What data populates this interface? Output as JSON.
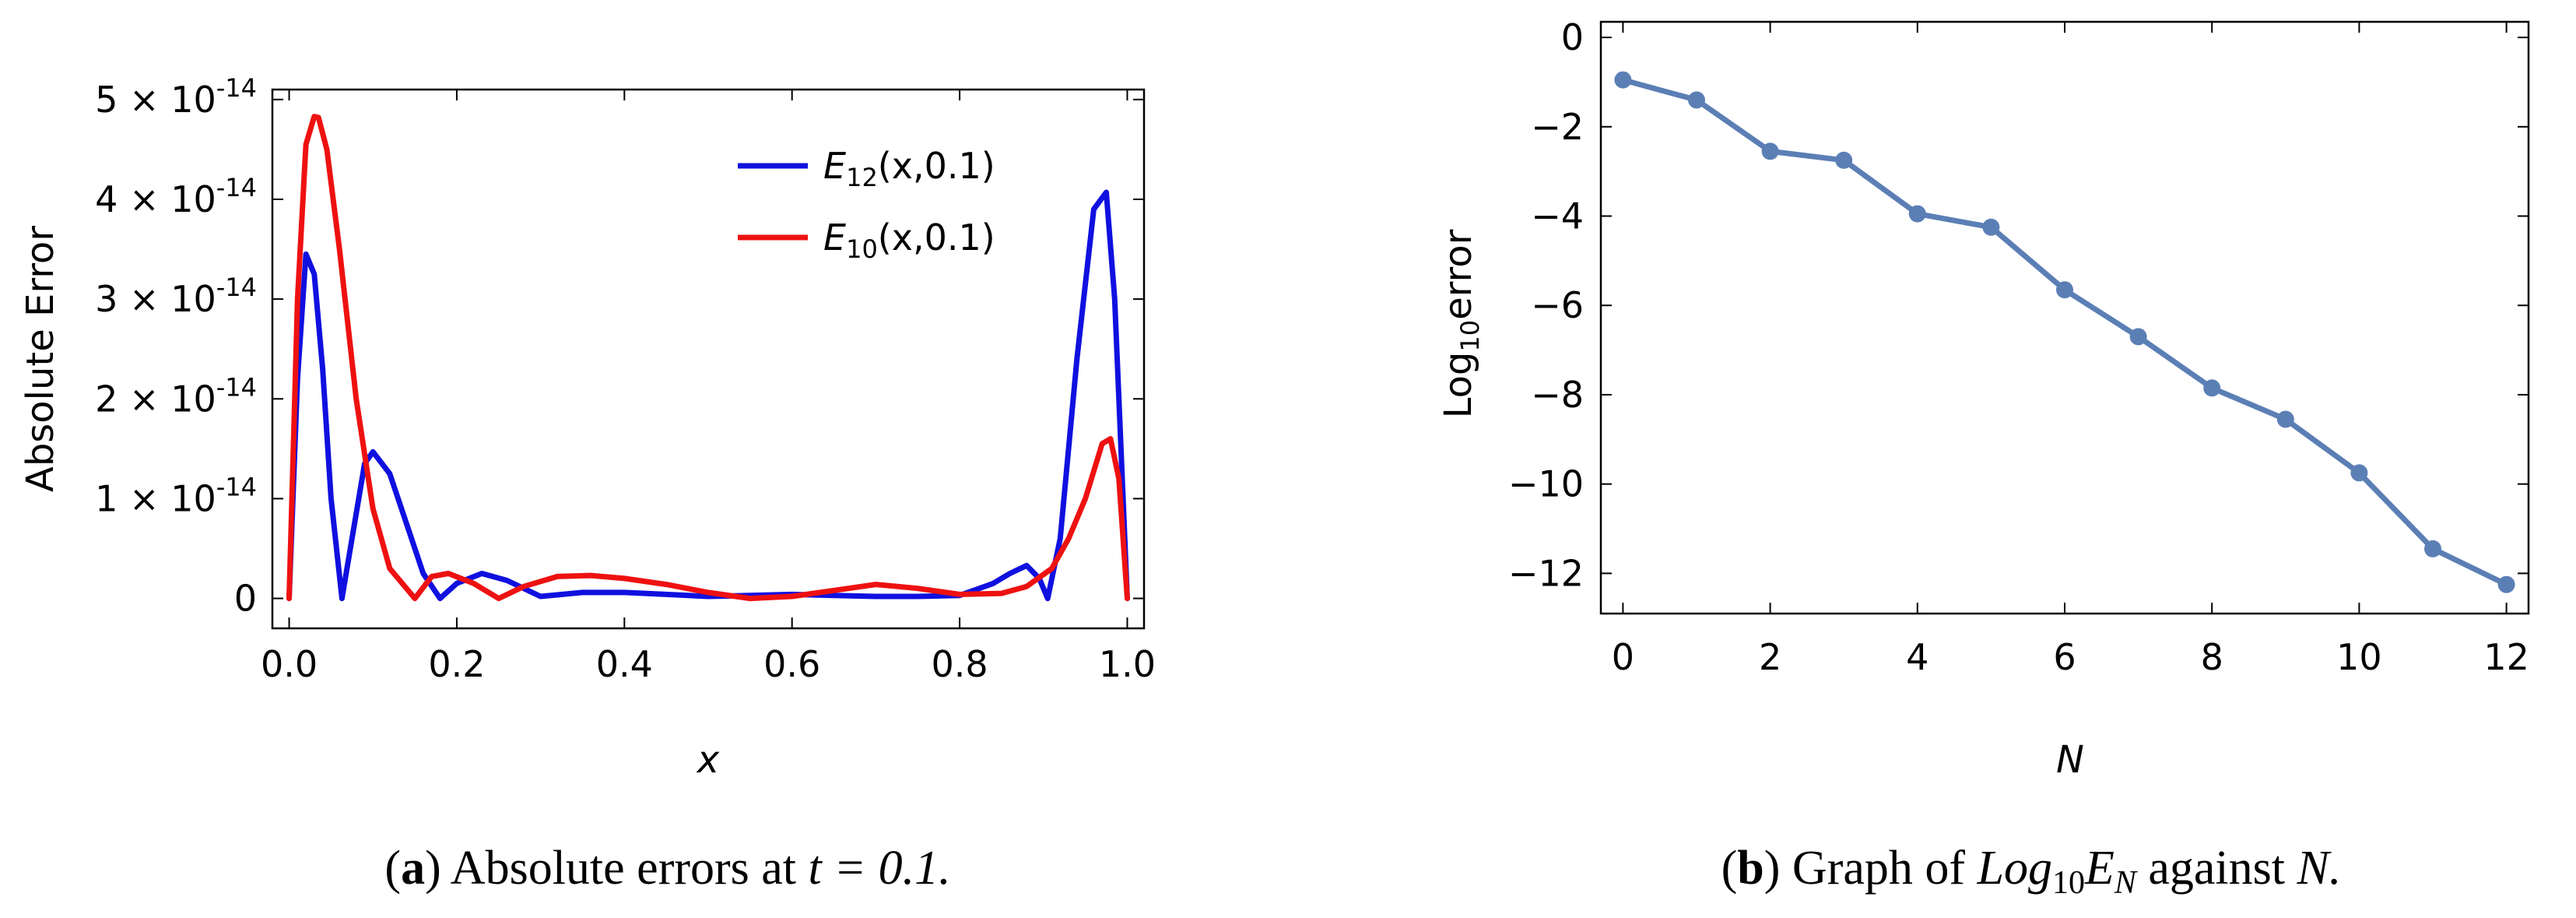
{
  "chart_data": [
    {
      "type": "line",
      "caption_label": "a",
      "caption_text": "Absolute errors at",
      "caption_math": "t = 0.1.",
      "xlabel": "x",
      "ylabel": "Absolute Error",
      "xlim": [
        -0.02,
        1.02
      ],
      "ylim": [
        -3e-15,
        5.1e-14
      ],
      "x_ticks": [
        "0.0",
        "0.2",
        "0.4",
        "0.6",
        "0.8",
        "1.0"
      ],
      "y_ticks": [
        "0",
        "1 × 10",
        "2 × 10",
        "3 × 10",
        "4 × 10",
        "5 × 10"
      ],
      "y_tick_exponent": "-14",
      "series": [
        {
          "name": "E12(x,0.1)",
          "legend_main": "E",
          "legend_sub": "12",
          "legend_args": "(x,0.1)",
          "color": "#1010e0",
          "x": [
            0.0,
            0.01,
            0.02,
            0.03,
            0.04,
            0.05,
            0.063,
            0.075,
            0.09,
            0.1,
            0.12,
            0.14,
            0.16,
            0.18,
            0.2,
            0.23,
            0.26,
            0.3,
            0.35,
            0.4,
            0.45,
            0.5,
            0.55,
            0.6,
            0.65,
            0.7,
            0.75,
            0.8,
            0.84,
            0.86,
            0.88,
            0.895,
            0.905,
            0.92,
            0.94,
            0.96,
            0.975,
            0.985,
            0.995,
            1.0
          ],
          "y": [
            0.0,
            2.2e-14,
            3.45e-14,
            3.25e-14,
            2.3e-14,
            1e-14,
            0.0,
            6e-15,
            1.35e-14,
            1.47e-14,
            1.25e-14,
            7.5e-15,
            2.5e-15,
            0.0,
            1.5e-15,
            2.5e-15,
            1.8e-15,
            2e-16,
            6e-16,
            6e-16,
            4e-16,
            2e-16,
            3e-16,
            4e-16,
            3e-16,
            2e-16,
            2e-16,
            3e-16,
            1.5e-15,
            2.5e-15,
            3.3e-15,
            2e-15,
            0.0,
            6e-15,
            2.4e-14,
            3.9e-14,
            4.07e-14,
            3e-14,
            1e-14,
            0.0
          ]
        },
        {
          "name": "E10(x,0.1)",
          "legend_main": "E",
          "legend_sub": "10",
          "legend_args": "(x,0.1)",
          "color": "#ee1111",
          "x": [
            0.0,
            0.01,
            0.02,
            0.03,
            0.035,
            0.045,
            0.06,
            0.08,
            0.1,
            0.12,
            0.15,
            0.17,
            0.19,
            0.22,
            0.25,
            0.28,
            0.32,
            0.36,
            0.4,
            0.45,
            0.5,
            0.55,
            0.6,
            0.65,
            0.7,
            0.75,
            0.8,
            0.85,
            0.88,
            0.91,
            0.93,
            0.95,
            0.97,
            0.98,
            0.99,
            1.0
          ],
          "y": [
            0.0,
            3e-14,
            4.55e-14,
            4.83e-14,
            4.82e-14,
            4.5e-14,
            3.5e-14,
            2e-14,
            9e-15,
            3e-15,
            0.0,
            2.2e-15,
            2.5e-15,
            1.5e-15,
            0.0,
            1.2e-15,
            2.2e-15,
            2.3e-15,
            2e-15,
            1.4e-15,
            6e-16,
            0.0,
            2e-16,
            8e-16,
            1.4e-15,
            1e-15,
            4e-16,
            5e-16,
            1.2e-15,
            3e-15,
            6e-15,
            1e-14,
            1.55e-14,
            1.6e-14,
            1.2e-14,
            0.0
          ]
        }
      ]
    },
    {
      "type": "line",
      "caption_label": "b",
      "caption_text_before": "Graph of",
      "caption_math_main": "Log",
      "caption_math_sub": "10",
      "caption_math_E": "E",
      "caption_math_N": "N",
      "caption_text_after": "against",
      "caption_math_end": "N.",
      "xlabel": "N",
      "ylabel_main": "Log",
      "ylabel_sub": "10",
      "ylabel_tail": "error",
      "xlim": [
        -0.3,
        12.3
      ],
      "ylim": [
        -12.9,
        0.35
      ],
      "x_ticks": [
        "0",
        "2",
        "4",
        "6",
        "8",
        "10",
        "12"
      ],
      "y_ticks": [
        "0",
        "−2",
        "−4",
        "−6",
        "−8",
        "−10",
        "−12"
      ],
      "color": "#5b7fb5",
      "x": [
        0,
        1,
        2,
        3,
        4,
        5,
        6,
        7,
        8,
        9,
        10,
        11,
        12
      ],
      "y": [
        -0.95,
        -1.4,
        -2.55,
        -2.75,
        -3.95,
        -4.25,
        -5.65,
        -6.7,
        -7.85,
        -8.55,
        -9.75,
        -11.45,
        -12.25
      ]
    }
  ]
}
